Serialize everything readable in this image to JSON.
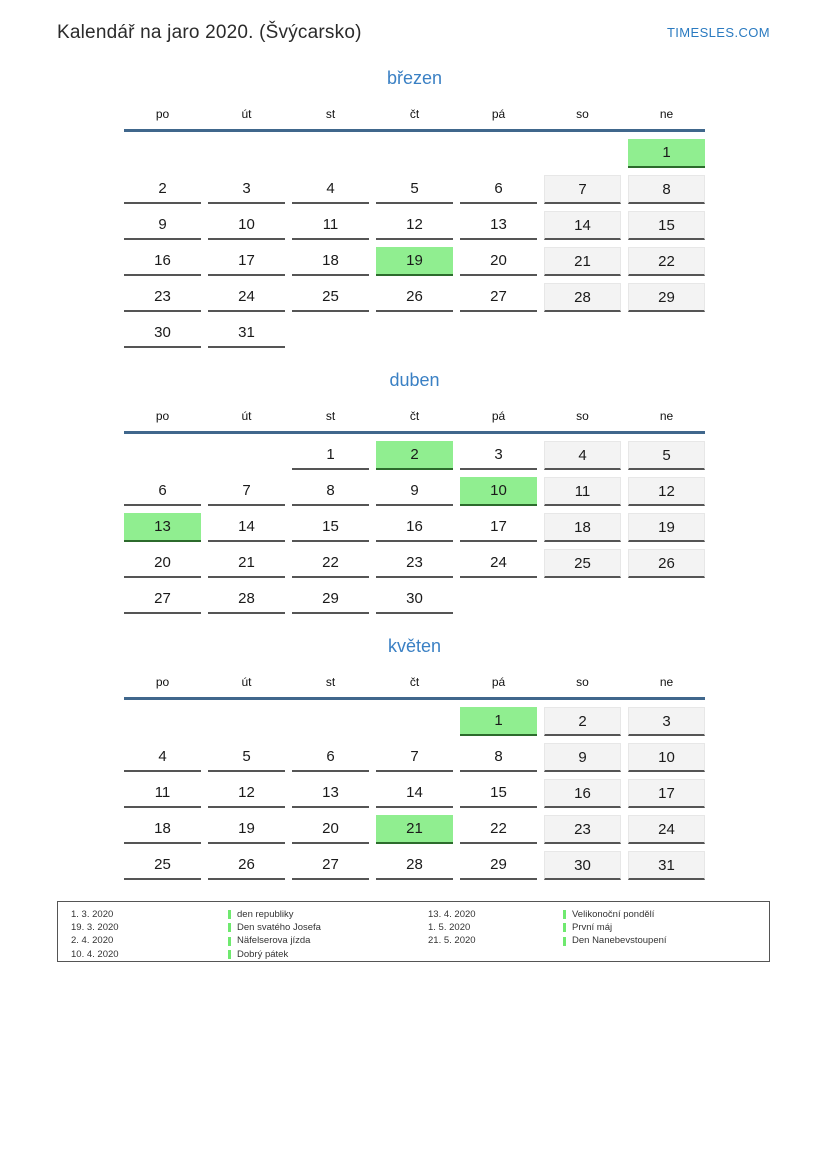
{
  "header": {
    "title": "Kalendář na jaro 2020. (Švýcarsko)",
    "brand": "TIMESLES.COM"
  },
  "colors": {
    "month_title_blue": "#3a80c4",
    "brand_blue": "#2a7ac0",
    "header_rule_blue": "#40678c",
    "holiday_green": "#90ee90",
    "holiday_border_green": "#2c6b2c",
    "weekend_gray": "#f3f3f3",
    "cell_border_gray": "#555555",
    "legend_marker_green": "#6fe96f"
  },
  "weekdays": [
    "po",
    "út",
    "st",
    "čt",
    "pá",
    "so",
    "ne"
  ],
  "months": [
    {
      "name": "březen",
      "holidays": [
        1,
        19
      ],
      "rows": [
        [
          "",
          "",
          "",
          "",
          "",
          "",
          1
        ],
        [
          2,
          3,
          4,
          5,
          6,
          7,
          8
        ],
        [
          9,
          10,
          11,
          12,
          13,
          14,
          15
        ],
        [
          16,
          17,
          18,
          19,
          20,
          21,
          22
        ],
        [
          23,
          24,
          25,
          26,
          27,
          28,
          29
        ],
        [
          30,
          31,
          "",
          "",
          "",
          "",
          ""
        ]
      ]
    },
    {
      "name": "duben",
      "holidays": [
        2,
        10,
        13
      ],
      "rows": [
        [
          "",
          "",
          1,
          2,
          3,
          4,
          5
        ],
        [
          6,
          7,
          8,
          9,
          10,
          11,
          12
        ],
        [
          13,
          14,
          15,
          16,
          17,
          18,
          19
        ],
        [
          20,
          21,
          22,
          23,
          24,
          25,
          26
        ],
        [
          27,
          28,
          29,
          30,
          "",
          "",
          ""
        ]
      ]
    },
    {
      "name": "květen",
      "holidays": [
        1,
        21
      ],
      "rows": [
        [
          "",
          "",
          "",
          "",
          1,
          2,
          3
        ],
        [
          4,
          5,
          6,
          7,
          8,
          9,
          10
        ],
        [
          11,
          12,
          13,
          14,
          15,
          16,
          17
        ],
        [
          18,
          19,
          20,
          21,
          22,
          23,
          24
        ],
        [
          25,
          26,
          27,
          28,
          29,
          30,
          31
        ]
      ]
    }
  ],
  "legend": {
    "groups": [
      [
        {
          "date": "1. 3. 2020",
          "name": "den republiky"
        },
        {
          "date": "19. 3. 2020",
          "name": "Den svatého Josefa"
        },
        {
          "date": "2. 4. 2020",
          "name": "Näfelserova jízda"
        },
        {
          "date": "10. 4. 2020",
          "name": "Dobrý pátek"
        }
      ],
      [
        {
          "date": "13. 4. 2020",
          "name": "Velikonoční pondělí"
        },
        {
          "date": "1. 5. 2020",
          "name": "První máj"
        },
        {
          "date": "21. 5. 2020",
          "name": "Den Nanebevstoupení"
        }
      ]
    ]
  }
}
